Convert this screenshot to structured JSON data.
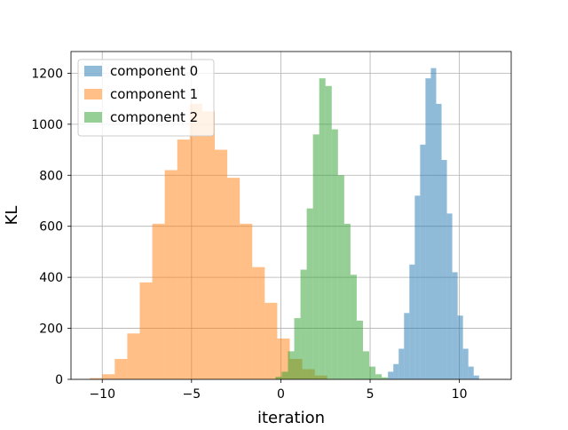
{
  "chart_data": {
    "type": "histogram",
    "title": "",
    "xlabel": "iteration",
    "ylabel": "KL",
    "xlim": [
      -11.75,
      12.9
    ],
    "ylim": [
      0,
      1285
    ],
    "xticks": [
      -10,
      -5,
      0,
      5,
      10
    ],
    "xtick_labels": [
      "−10",
      "−5",
      "0",
      "5",
      "10"
    ],
    "yticks": [
      0,
      200,
      400,
      600,
      800,
      1000,
      1200
    ],
    "ytick_labels": [
      "0",
      "200",
      "400",
      "600",
      "800",
      "1000",
      "1200"
    ],
    "grid": true,
    "legend_position": "upper left",
    "series": [
      {
        "name": "component 0",
        "color": "#1f77b4",
        "alpha": 0.5,
        "bins": [
          {
            "x0": 6.0,
            "x1": 6.3,
            "count": 30
          },
          {
            "x0": 6.3,
            "x1": 6.6,
            "count": 60
          },
          {
            "x0": 6.6,
            "x1": 6.9,
            "count": 120
          },
          {
            "x0": 6.9,
            "x1": 7.2,
            "count": 260
          },
          {
            "x0": 7.2,
            "x1": 7.5,
            "count": 450
          },
          {
            "x0": 7.5,
            "x1": 7.8,
            "count": 720
          },
          {
            "x0": 7.8,
            "x1": 8.1,
            "count": 920
          },
          {
            "x0": 8.1,
            "x1": 8.4,
            "count": 1180
          },
          {
            "x0": 8.4,
            "x1": 8.7,
            "count": 1220
          },
          {
            "x0": 8.7,
            "x1": 9.0,
            "count": 1080
          },
          {
            "x0": 9.0,
            "x1": 9.3,
            "count": 860
          },
          {
            "x0": 9.3,
            "x1": 9.6,
            "count": 650
          },
          {
            "x0": 9.6,
            "x1": 9.9,
            "count": 420
          },
          {
            "x0": 9.9,
            "x1": 10.2,
            "count": 250
          },
          {
            "x0": 10.2,
            "x1": 10.5,
            "count": 120
          },
          {
            "x0": 10.5,
            "x1": 10.8,
            "count": 50
          },
          {
            "x0": 10.8,
            "x1": 11.1,
            "count": 15
          }
        ]
      },
      {
        "name": "component 1",
        "color": "#ff7f0e",
        "alpha": 0.5,
        "bins": [
          {
            "x0": -10.7,
            "x1": -10.0,
            "count": 5
          },
          {
            "x0": -10.0,
            "x1": -9.3,
            "count": 20
          },
          {
            "x0": -9.3,
            "x1": -8.6,
            "count": 80
          },
          {
            "x0": -8.6,
            "x1": -7.9,
            "count": 180
          },
          {
            "x0": -7.9,
            "x1": -7.2,
            "count": 380
          },
          {
            "x0": -7.2,
            "x1": -6.5,
            "count": 610
          },
          {
            "x0": -6.5,
            "x1": -5.8,
            "count": 820
          },
          {
            "x0": -5.8,
            "x1": -5.1,
            "count": 940
          },
          {
            "x0": -5.1,
            "x1": -4.4,
            "count": 1080
          },
          {
            "x0": -4.4,
            "x1": -3.7,
            "count": 1050
          },
          {
            "x0": -3.7,
            "x1": -3.0,
            "count": 900
          },
          {
            "x0": -3.0,
            "x1": -2.3,
            "count": 790
          },
          {
            "x0": -2.3,
            "x1": -1.6,
            "count": 610
          },
          {
            "x0": -1.6,
            "x1": -0.9,
            "count": 440
          },
          {
            "x0": -0.9,
            "x1": -0.2,
            "count": 300
          },
          {
            "x0": -0.2,
            "x1": 0.5,
            "count": 160
          },
          {
            "x0": 0.5,
            "x1": 1.2,
            "count": 80
          },
          {
            "x0": 1.2,
            "x1": 1.9,
            "count": 40
          },
          {
            "x0": 1.9,
            "x1": 2.6,
            "count": 15
          }
        ]
      },
      {
        "name": "component 2",
        "color": "#2ca02c",
        "alpha": 0.5,
        "bins": [
          {
            "x0": -0.3,
            "x1": 0.05,
            "count": 10
          },
          {
            "x0": 0.05,
            "x1": 0.4,
            "count": 30
          },
          {
            "x0": 0.4,
            "x1": 0.75,
            "count": 110
          },
          {
            "x0": 0.75,
            "x1": 1.1,
            "count": 240
          },
          {
            "x0": 1.1,
            "x1": 1.45,
            "count": 430
          },
          {
            "x0": 1.45,
            "x1": 1.8,
            "count": 670
          },
          {
            "x0": 1.8,
            "x1": 2.15,
            "count": 960
          },
          {
            "x0": 2.15,
            "x1": 2.5,
            "count": 1180
          },
          {
            "x0": 2.5,
            "x1": 2.85,
            "count": 1150
          },
          {
            "x0": 2.85,
            "x1": 3.2,
            "count": 980
          },
          {
            "x0": 3.2,
            "x1": 3.55,
            "count": 800
          },
          {
            "x0": 3.55,
            "x1": 3.9,
            "count": 610
          },
          {
            "x0": 3.9,
            "x1": 4.25,
            "count": 410
          },
          {
            "x0": 4.25,
            "x1": 4.6,
            "count": 230
          },
          {
            "x0": 4.6,
            "x1": 4.95,
            "count": 110
          },
          {
            "x0": 4.95,
            "x1": 5.3,
            "count": 50
          },
          {
            "x0": 5.3,
            "x1": 5.65,
            "count": 20
          },
          {
            "x0": 5.65,
            "x1": 6.0,
            "count": 8
          }
        ]
      }
    ]
  }
}
